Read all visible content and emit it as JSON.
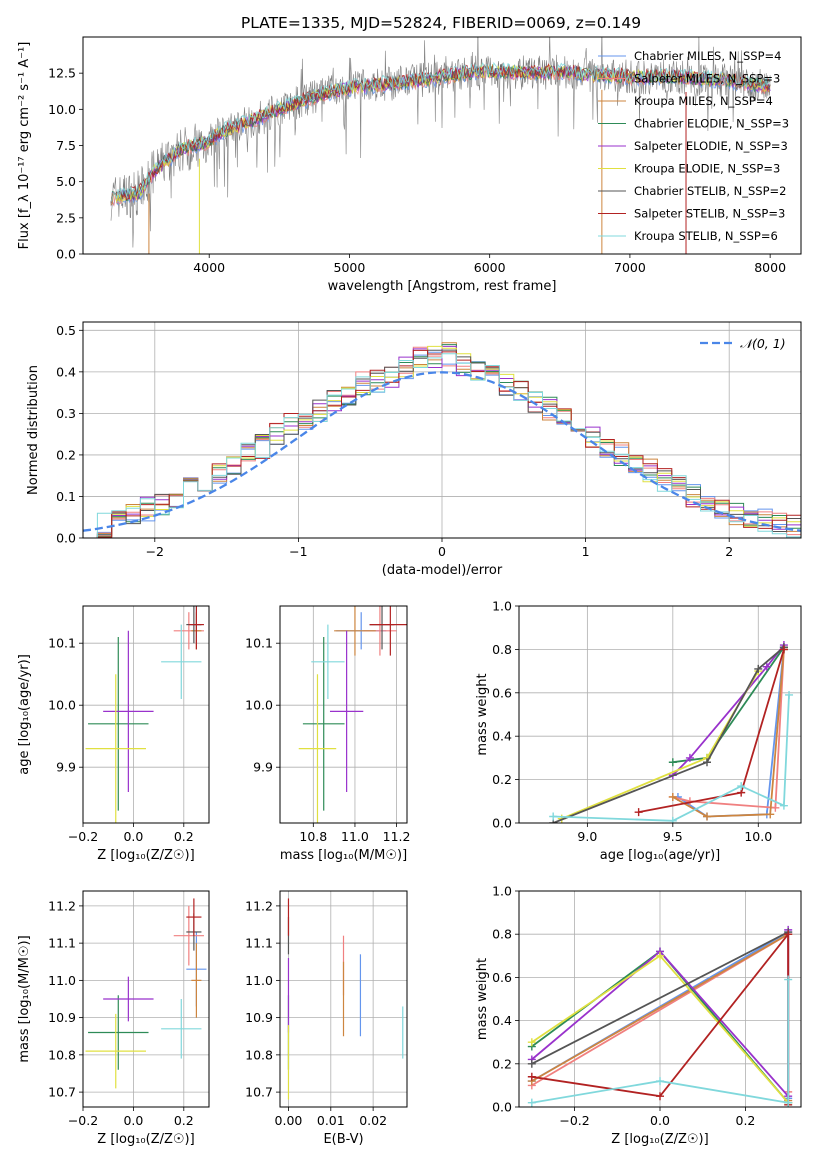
{
  "figure": {
    "title": "PLATE=1335, MJD=52824, FIBERID=0069, z=0.149"
  },
  "colors": {
    "chabrier_miles": "#6495ed",
    "salpeter_miles": "#f08080",
    "kroupa_miles": "#cd853f",
    "chabrier_elodie": "#2e8b57",
    "salpeter_elodie": "#9932cc",
    "kroupa_elodie": "#e0e040",
    "chabrier_stelib": "#555555",
    "salpeter_stelib": "#b22222",
    "kroupa_stelib": "#80d8dc",
    "data": "#808080",
    "normal": "#4a86e8"
  },
  "chart_data": [
    {
      "id": "spectrum",
      "type": "line",
      "xlabel": "wavelength [Angstrom, rest frame]",
      "ylabel": "Flux [f_λ 10⁻¹⁷ erg cm⁻² s⁻¹ A⁻¹]",
      "xlim": [
        3100,
        8220
      ],
      "ylim": [
        0,
        15
      ],
      "xticks": [
        "4000",
        "5000",
        "6000",
        "7000",
        "8000"
      ],
      "yticks": [
        "0.0",
        "2.5",
        "5.0",
        "7.5",
        "10.0",
        "12.5"
      ],
      "continuum": {
        "x": [
          3300,
          3500,
          3600,
          3700,
          3800,
          3900,
          4000,
          4100,
          4300,
          4500,
          4700,
          4900,
          5100,
          5300,
          5500,
          5700,
          5900,
          6100,
          6300,
          6500,
          6700,
          6900,
          7100,
          7300,
          7500,
          7700,
          7900,
          8000
        ],
        "y": [
          3.9,
          4.2,
          5.6,
          6.5,
          7.2,
          7.5,
          7.8,
          8.5,
          9.2,
          10.0,
          10.7,
          11.3,
          11.6,
          11.8,
          12.0,
          12.3,
          12.6,
          12.6,
          12.5,
          12.6,
          12.4,
          12.3,
          12.2,
          12.3,
          12.1,
          12.0,
          11.7,
          11.6
        ]
      },
      "legend": [
        {
          "label": "Chabrier MILES, N_SSP=4",
          "color_key": "chabrier_miles"
        },
        {
          "label": "Salpeter MILES, N_SSP=3",
          "color_key": "salpeter_miles"
        },
        {
          "label": "Kroupa MILES, N_SSP=4",
          "color_key": "kroupa_miles"
        },
        {
          "label": "Chabrier ELODIE, N_SSP=3",
          "color_key": "chabrier_elodie"
        },
        {
          "label": "Salpeter ELODIE, N_SSP=3",
          "color_key": "salpeter_elodie"
        },
        {
          "label": "Kroupa ELODIE, N_SSP=3",
          "color_key": "kroupa_elodie"
        },
        {
          "label": "Chabrier STELIB, N_SSP=2",
          "color_key": "chabrier_stelib"
        },
        {
          "label": "Salpeter STELIB, N_SSP=3",
          "color_key": "salpeter_stelib"
        },
        {
          "label": "Kroupa STELIB, N_SSP=6",
          "color_key": "kroupa_stelib"
        }
      ],
      "legend_position": "upper-right"
    },
    {
      "id": "residuals",
      "type": "line",
      "xlabel": "(data-model)/error",
      "ylabel": "Normed distribution",
      "xlim": [
        -2.5,
        2.5
      ],
      "ylim": [
        0,
        0.52
      ],
      "xticks": [
        "−2",
        "−1",
        "0",
        "1",
        "2"
      ],
      "yticks": [
        "0.0",
        "0.1",
        "0.2",
        "0.3",
        "0.4",
        "0.5"
      ],
      "grid": true,
      "legend_label": "𝒩(0, 1)",
      "legend_position": "upper-right",
      "histogram_bins": 50,
      "histogram_center": [
        0.02,
        0.03,
        0.04,
        0.06,
        0.07,
        0.08,
        0.1,
        0.12,
        0.14,
        0.16,
        0.18,
        0.2,
        0.22,
        0.25,
        0.27,
        0.29,
        0.31,
        0.33,
        0.35,
        0.37,
        0.38,
        0.39,
        0.41,
        0.43,
        0.44,
        0.44,
        0.42,
        0.4,
        0.39,
        0.37,
        0.35,
        0.33,
        0.31,
        0.29,
        0.27,
        0.24,
        0.22,
        0.2,
        0.18,
        0.16,
        0.14,
        0.12,
        0.1,
        0.08,
        0.07,
        0.06,
        0.05,
        0.04,
        0.03,
        0.025
      ]
    },
    {
      "id": "age_vs_Z",
      "type": "scatter",
      "xlabel": "Z [log₁₀(Z/Z☉)]",
      "ylabel": "age  [log₁₀(age/yr)]",
      "xlim": [
        -0.2,
        0.3
      ],
      "ylim": [
        9.81,
        10.16
      ],
      "xticks": [
        "−0.2",
        "0.0",
        "0.2"
      ],
      "yticks": [
        "9.9",
        "10.0",
        "10.1"
      ],
      "points": [
        {
          "color_key": "chabrier_miles",
          "x": 0.25,
          "xerr": 0.02,
          "y": 10.13,
          "yerr": 0.03
        },
        {
          "color_key": "salpeter_miles",
          "x": 0.22,
          "xerr": 0.06,
          "y": 10.12,
          "yerr": 0.03
        },
        {
          "color_key": "kroupa_miles",
          "x": 0.25,
          "xerr": 0.02,
          "y": 10.12,
          "yerr": 0.03
        },
        {
          "color_key": "chabrier_elodie",
          "x": -0.06,
          "xerr": 0.12,
          "y": 9.97,
          "yerr": 0.14
        },
        {
          "color_key": "salpeter_elodie",
          "x": -0.02,
          "xerr": 0.1,
          "y": 9.99,
          "yerr": 0.13
        },
        {
          "color_key": "kroupa_elodie",
          "x": -0.07,
          "xerr": 0.12,
          "y": 9.93,
          "yerr": 0.12
        },
        {
          "color_key": "chabrier_stelib",
          "x": 0.24,
          "xerr": 0.03,
          "y": 10.13,
          "yerr": 0.03
        },
        {
          "color_key": "salpeter_stelib",
          "x": 0.25,
          "xerr": 0.03,
          "y": 10.13,
          "yerr": 0.04
        },
        {
          "color_key": "kroupa_stelib",
          "x": 0.19,
          "xerr": 0.08,
          "y": 10.07,
          "yerr": 0.06
        }
      ]
    },
    {
      "id": "age_vs_mass",
      "type": "scatter",
      "xlabel": "mass [log₁₀(M/M☉)]",
      "ylabel": "",
      "xlim": [
        10.64,
        11.25
      ],
      "ylim": [
        9.81,
        10.16
      ],
      "xticks": [
        "10.8",
        "11.0",
        "11.2"
      ],
      "yticks": [
        "9.9",
        "10.0",
        "10.1"
      ],
      "points": [
        {
          "color_key": "chabrier_miles",
          "x": 11.03,
          "xerr": 0.12,
          "y": 10.12,
          "yerr": 0.03
        },
        {
          "color_key": "salpeter_miles",
          "x": 11.12,
          "xerr": 0.08,
          "y": 10.12,
          "yerr": 0.04
        },
        {
          "color_key": "kroupa_miles",
          "x": 11.0,
          "xerr": 0.1,
          "y": 10.12,
          "yerr": 0.04
        },
        {
          "color_key": "chabrier_elodie",
          "x": 10.85,
          "xerr": 0.1,
          "y": 9.97,
          "yerr": 0.14
        },
        {
          "color_key": "salpeter_elodie",
          "x": 10.96,
          "xerr": 0.08,
          "y": 9.99,
          "yerr": 0.13
        },
        {
          "color_key": "kroupa_elodie",
          "x": 10.82,
          "xerr": 0.09,
          "y": 9.93,
          "yerr": 0.12
        },
        {
          "color_key": "chabrier_stelib",
          "x": 11.13,
          "xerr": 0.06,
          "y": 10.13,
          "yerr": 0.04
        },
        {
          "color_key": "salpeter_stelib",
          "x": 11.17,
          "xerr": 0.1,
          "y": 10.13,
          "yerr": 0.05
        },
        {
          "color_key": "kroupa_stelib",
          "x": 10.87,
          "xerr": 0.08,
          "y": 10.07,
          "yerr": 0.06
        }
      ]
    },
    {
      "id": "mass_weight_vs_age",
      "type": "line",
      "xlabel": "age  [log₁₀(age/yr)]",
      "ylabel": "mass weight",
      "xlim": [
        8.6,
        10.25
      ],
      "ylim": [
        0,
        1
      ],
      "xticks": [
        "9.0",
        "9.5",
        "10.0"
      ],
      "yticks": [
        "0.0",
        "0.2",
        "0.4",
        "0.6",
        "0.8",
        "1.0"
      ],
      "grid": true,
      "series": [
        {
          "color_key": "chabrier_miles",
          "x": [
            9.53,
            9.7,
            10.05,
            10.15
          ],
          "y": [
            0.12,
            0.03,
            0.04,
            0.81
          ]
        },
        {
          "color_key": "salpeter_miles",
          "x": [
            9.5,
            9.6,
            10.1,
            10.15
          ],
          "y": [
            0.12,
            0.1,
            0.07,
            0.8
          ]
        },
        {
          "color_key": "kroupa_miles",
          "x": [
            9.5,
            9.7,
            10.07,
            10.15
          ],
          "y": [
            0.12,
            0.03,
            0.04,
            0.8
          ]
        },
        {
          "color_key": "chabrier_elodie",
          "x": [
            9.5,
            9.7,
            10.15
          ],
          "y": [
            0.28,
            0.3,
            0.81
          ]
        },
        {
          "color_key": "salpeter_elodie",
          "x": [
            9.5,
            9.6,
            10.05,
            10.15
          ],
          "y": [
            0.22,
            0.3,
            0.72,
            0.82
          ]
        },
        {
          "color_key": "kroupa_elodie",
          "x": [
            8.85,
            9.7,
            10.0
          ],
          "y": [
            0.02,
            0.3,
            0.7
          ]
        },
        {
          "color_key": "chabrier_stelib",
          "x": [
            8.8,
            9.7,
            10.0,
            10.15
          ],
          "y": [
            0.0,
            0.28,
            0.71,
            0.81
          ]
        },
        {
          "color_key": "salpeter_stelib",
          "x": [
            9.3,
            9.9,
            10.15
          ],
          "y": [
            0.05,
            0.14,
            0.8
          ]
        },
        {
          "color_key": "kroupa_stelib",
          "x": [
            8.8,
            9.5,
            9.9,
            10.15,
            10.18
          ],
          "y": [
            0.03,
            0.01,
            0.17,
            0.08,
            0.59
          ]
        }
      ]
    },
    {
      "id": "mass_vs_Z",
      "type": "scatter",
      "xlabel": "Z [log₁₀(Z/Z☉)]",
      "ylabel": "mass [log₁₀(M/M☉)]",
      "xlim": [
        -0.2,
        0.3
      ],
      "ylim": [
        10.66,
        11.24
      ],
      "xticks": [
        "−0.2",
        "0.0",
        "0.2"
      ],
      "yticks": [
        "10.7",
        "10.8",
        "10.9",
        "11.0",
        "11.1",
        "11.2"
      ],
      "points": [
        {
          "color_key": "chabrier_miles",
          "x": 0.25,
          "xerr": 0.04,
          "y": 11.03,
          "yerr": 0.1
        },
        {
          "color_key": "salpeter_miles",
          "x": 0.22,
          "xerr": 0.06,
          "y": 11.12,
          "yerr": 0.08
        },
        {
          "color_key": "kroupa_miles",
          "x": 0.25,
          "xerr": 0.02,
          "y": 11.0,
          "yerr": 0.1
        },
        {
          "color_key": "chabrier_elodie",
          "x": -0.06,
          "xerr": 0.12,
          "y": 10.86,
          "yerr": 0.1
        },
        {
          "color_key": "salpeter_elodie",
          "x": -0.02,
          "xerr": 0.1,
          "y": 10.95,
          "yerr": 0.06
        },
        {
          "color_key": "kroupa_elodie",
          "x": -0.07,
          "xerr": 0.12,
          "y": 10.81,
          "yerr": 0.1
        },
        {
          "color_key": "chabrier_stelib",
          "x": 0.24,
          "xerr": 0.03,
          "y": 11.13,
          "yerr": 0.05
        },
        {
          "color_key": "salpeter_stelib",
          "x": 0.24,
          "xerr": 0.03,
          "y": 11.17,
          "yerr": 0.05
        },
        {
          "color_key": "kroupa_stelib",
          "x": 0.19,
          "xerr": 0.08,
          "y": 10.87,
          "yerr": 0.08
        }
      ]
    },
    {
      "id": "mass_vs_ebv",
      "type": "scatter",
      "xlabel": "E(B-V)",
      "ylabel": "",
      "xlim": [
        -0.002,
        0.028
      ],
      "ylim": [
        10.66,
        11.24
      ],
      "xticks": [
        "0.00",
        "0.01",
        "0.02"
      ],
      "yticks": [
        "10.7",
        "10.8",
        "10.9",
        "11.0",
        "11.1",
        "11.2"
      ],
      "points": [
        {
          "color_key": "chabrier_miles",
          "x": 0.017,
          "y": 10.96,
          "yerr": 0.11
        },
        {
          "color_key": "salpeter_miles",
          "x": 0.013,
          "y": 11.04,
          "yerr": 0.08
        },
        {
          "color_key": "kroupa_miles",
          "x": 0.013,
          "y": 10.95,
          "yerr": 0.1
        },
        {
          "color_key": "chabrier_elodie",
          "x": 0.0,
          "y": 10.86,
          "yerr": 0.1
        },
        {
          "color_key": "salpeter_elodie",
          "x": 0.0,
          "y": 10.96,
          "yerr": 0.1
        },
        {
          "color_key": "kroupa_elodie",
          "x": 0.0,
          "y": 10.78,
          "yerr": 0.1
        },
        {
          "color_key": "chabrier_stelib",
          "x": 0.0,
          "y": 11.12,
          "yerr": 0.05
        },
        {
          "color_key": "salpeter_stelib",
          "x": 0.0,
          "y": 11.17,
          "yerr": 0.05
        },
        {
          "color_key": "kroupa_stelib",
          "x": 0.027,
          "y": 10.86,
          "yerr": 0.07
        }
      ]
    },
    {
      "id": "mass_weight_vs_Z",
      "type": "line",
      "xlabel": "Z [log₁₀(Z/Z☉)]",
      "ylabel": "mass weight",
      "xlim": [
        -0.33,
        0.33
      ],
      "ylim": [
        0,
        1
      ],
      "xticks": [
        "−0.2",
        "0.0",
        "0.2"
      ],
      "yticks": [
        "0.0",
        "0.2",
        "0.4",
        "0.6",
        "0.8",
        "1.0"
      ],
      "grid": true,
      "series": [
        {
          "color_key": "chabrier_miles",
          "x": [
            -0.3,
            0.3,
            0.3
          ],
          "y": [
            0.12,
            0.81,
            0.04
          ]
        },
        {
          "color_key": "salpeter_miles",
          "x": [
            -0.3,
            0.3,
            0.3
          ],
          "y": [
            0.1,
            0.8,
            0.07
          ]
        },
        {
          "color_key": "kroupa_miles",
          "x": [
            -0.3,
            0.3,
            0.3
          ],
          "y": [
            0.12,
            0.8,
            0.03
          ]
        },
        {
          "color_key": "chabrier_elodie",
          "x": [
            -0.3,
            0.0,
            0.3
          ],
          "y": [
            0.28,
            0.72,
            0.02
          ]
        },
        {
          "color_key": "salpeter_elodie",
          "x": [
            -0.3,
            0.0,
            0.3,
            0.3
          ],
          "y": [
            0.22,
            0.72,
            0.05,
            0.82
          ]
        },
        {
          "color_key": "kroupa_elodie",
          "x": [
            -0.3,
            0.0,
            0.3
          ],
          "y": [
            0.3,
            0.7,
            0.02
          ]
        },
        {
          "color_key": "chabrier_stelib",
          "x": [
            -0.3,
            0.3
          ],
          "y": [
            0.2,
            0.81
          ]
        },
        {
          "color_key": "salpeter_stelib",
          "x": [
            -0.3,
            0.0,
            0.3,
            0.3
          ],
          "y": [
            0.14,
            0.05,
            0.8,
            0.01
          ]
        },
        {
          "color_key": "kroupa_stelib",
          "x": [
            -0.3,
            0.0,
            0.3,
            0.3
          ],
          "y": [
            0.02,
            0.12,
            0.02,
            0.59
          ]
        }
      ]
    }
  ]
}
